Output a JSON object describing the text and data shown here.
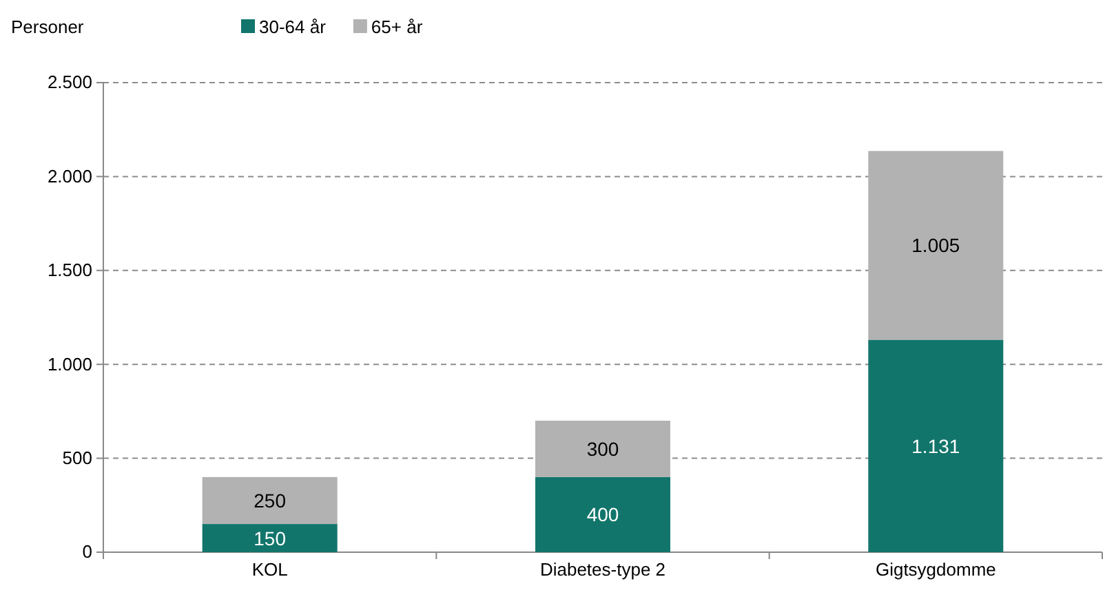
{
  "chart_data": {
    "type": "bar",
    "stacked": true,
    "ylabel": "Personer",
    "categories": [
      "KOL",
      "Diabetes-type 2",
      "Gigtsygdomme"
    ],
    "series": [
      {
        "name": "30-64 år",
        "color": "#12756b",
        "values": [
          150,
          400,
          1131
        ],
        "value_labels": [
          "150",
          "400",
          "1.131"
        ]
      },
      {
        "name": "65+ år",
        "color": "#b2b2b2",
        "values": [
          250,
          300,
          1005
        ],
        "value_labels": [
          "250",
          "300",
          "1.005"
        ]
      }
    ],
    "ylim": [
      0,
      2500
    ],
    "yticks": [
      0,
      500,
      {
        "value": 1000,
        "label": "1.000"
      },
      {
        "value": 1500,
        "label": "1.500"
      },
      {
        "value": 2000,
        "label": "2.000"
      },
      {
        "value": 2500,
        "label": "2.500"
      }
    ],
    "grid": "y",
    "legend": "top"
  }
}
